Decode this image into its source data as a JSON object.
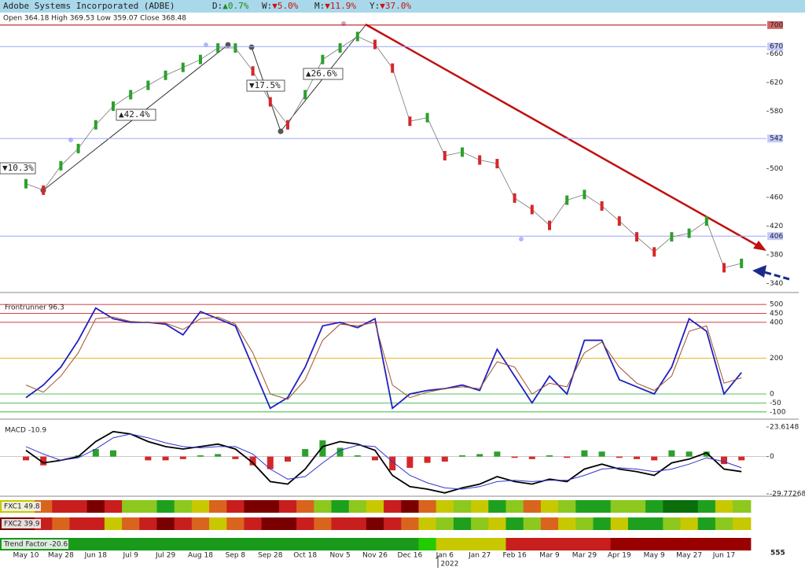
{
  "header": {
    "title": "Adobe Systems Incorporated (ADBE)",
    "changes": [
      {
        "label": "D:",
        "value": "▲0.7%",
        "color": "#1a8a1a"
      },
      {
        "label": "W:",
        "value": "▼5.0%",
        "color": "#cc1111"
      },
      {
        "label": "M:",
        "value": "▼11.9%",
        "color": "#cc1111"
      },
      {
        "label": "Y:",
        "value": "▼37.0%",
        "color": "#cc1111"
      }
    ],
    "ohlc": "Open 364.18 High 369.53 Low 359.07 Close 368.48"
  },
  "chart_data": [
    {
      "type": "line",
      "categories": [
        "May 10",
        null,
        "May 28",
        null,
        "Jun 18",
        null,
        "Jul 9",
        null,
        "Jul 29",
        null,
        "Aug 18",
        null,
        "Sep 8",
        null,
        "Sep 28",
        null,
        "Oct 18",
        null,
        "Nov 5",
        null,
        "Nov 26",
        null,
        "Dec 16",
        null,
        "Jan 6",
        null,
        "Jan 27",
        null,
        "Feb 16",
        null,
        "Mar 9",
        null,
        "Mar 29",
        null,
        "Apr 19",
        null,
        "May 9",
        null,
        "May 27",
        null,
        "Jun 17",
        null
      ],
      "year_label": "2022",
      "series": [
        {
          "color": "#777777",
          "values": [
            479,
            470,
            504,
            528,
            561,
            587,
            603,
            616,
            630,
            641,
            652,
            668,
            668,
            636,
            593,
            561,
            603,
            652,
            668,
            684,
            673,
            640,
            566,
            571,
            518,
            523,
            512,
            507,
            459,
            443,
            421,
            456,
            464,
            448,
            427,
            405,
            384,
            405,
            410,
            427,
            362,
            368
          ]
        }
      ],
      "up_color": "#2ca02c",
      "down_color": "#d62728",
      "ylim": [
        334,
        702
      ],
      "yticks": [
        340,
        380,
        420,
        460,
        500,
        580,
        620,
        660
      ],
      "levels": [
        {
          "value": 700,
          "color": "#b00000"
        },
        {
          "value": 670,
          "color": "#9aa6ff"
        },
        {
          "value": 542,
          "color": "#9aa6ff"
        },
        {
          "value": 406,
          "color": "#9aa6ff"
        }
      ],
      "annotations": [
        {
          "text": "▼10.3%",
          "color": "#cc1111"
        },
        {
          "text": "▲42.4%",
          "color": "#1a7a1a"
        },
        {
          "text": "▼17.5%",
          "color": "#cc1111"
        },
        {
          "text": "▲26.6%",
          "color": "#1a7a1a"
        }
      ]
    },
    {
      "type": "line",
      "title": "Frontrunner 96.3",
      "ylim": [
        -136,
        540
      ],
      "yticks": [
        500,
        450,
        400,
        200,
        0,
        -50,
        -100
      ],
      "tick_colors": [
        "#c00000",
        "#c00000",
        "#c00000",
        "#e0b000",
        "#22aa22",
        "#22aa22",
        "#22aa22"
      ],
      "series": [
        {
          "color": "#2020c0",
          "values": [
            -20,
            50,
            150,
            300,
            480,
            420,
            400,
            400,
            390,
            330,
            460,
            420,
            380,
            150,
            -80,
            -20,
            150,
            380,
            400,
            370,
            420,
            -80,
            0,
            20,
            30,
            50,
            20,
            250,
            100,
            -50,
            100,
            0,
            300,
            300,
            80,
            40,
            0,
            150,
            420,
            350,
            0,
            120
          ]
        },
        {
          "color": "#a0522d",
          "values": [
            50,
            10,
            100,
            230,
            420,
            430,
            405,
            400,
            395,
            360,
            420,
            430,
            390,
            230,
            0,
            -30,
            80,
            300,
            390,
            380,
            400,
            50,
            -20,
            10,
            30,
            40,
            30,
            180,
            150,
            0,
            60,
            40,
            230,
            290,
            150,
            60,
            20,
            100,
            350,
            380,
            60,
            90
          ]
        }
      ]
    },
    {
      "type": "line",
      "title": "MACD -10.9",
      "ylim": [
        -29.77268,
        23.6148
      ],
      "yticks": [
        23.6148,
        0,
        -29.77268
      ],
      "hist_up_color": "#2ca02c",
      "hist_down_color": "#d62728",
      "histogram": [
        -3,
        -7,
        0,
        1,
        6,
        5,
        0,
        -3,
        -3,
        -2,
        1,
        2,
        -2,
        -7,
        -10,
        -4,
        6,
        13,
        7,
        1,
        -3,
        -11,
        -9,
        -5,
        -4,
        1,
        2,
        4,
        -1,
        -2,
        1,
        -1,
        5,
        4,
        -1,
        -2,
        -3,
        5,
        4,
        4,
        -6,
        -3
      ],
      "series": [
        {
          "color": "#000000",
          "values": [
            5,
            -5,
            -3,
            0,
            12,
            20,
            18,
            12,
            8,
            6,
            8,
            10,
            6,
            -5,
            -20,
            -22,
            -10,
            8,
            12,
            10,
            5,
            -15,
            -24,
            -26,
            -29,
            -25,
            -22,
            -16,
            -20,
            -22,
            -18,
            -20,
            -10,
            -6,
            -10,
            -12,
            -15,
            -5,
            -2,
            3,
            -10,
            -12
          ]
        },
        {
          "color": "#3333cc",
          "values": [
            8,
            2,
            -3,
            -1,
            6,
            15,
            18,
            15,
            11,
            8,
            7,
            8,
            8,
            2,
            -10,
            -18,
            -16,
            -5,
            5,
            9,
            8,
            -4,
            -15,
            -21,
            -25,
            -26,
            -24,
            -20,
            -19,
            -20,
            -19,
            -19,
            -15,
            -10,
            -9,
            -10,
            -12,
            -10,
            -6,
            -1,
            -4,
            -9
          ]
        }
      ]
    },
    {
      "type": "heatmap",
      "scale_label": "555",
      "rows": [
        {
          "name": "FXC1 49.8",
          "colors": [
            "#c8c800",
            "#d9641e",
            "#c81e1e",
            "#c81e1e",
            "#7a0000",
            "#c81e1e",
            "#8cc81e",
            "#8cc81e",
            "#1ea01e",
            "#8cc81e",
            "#c8c800",
            "#d9641e",
            "#c81e1e",
            "#7a0000",
            "#7a0000",
            "#c81e1e",
            "#d9641e",
            "#8cc81e",
            "#1ea01e",
            "#8cc81e",
            "#c8c800",
            "#c81e1e",
            "#7a0000",
            "#d9641e",
            "#c8c800",
            "#8cc81e",
            "#c8c800",
            "#1ea01e",
            "#8cc81e",
            "#d9641e",
            "#c8c800",
            "#8cc81e",
            "#1ea01e",
            "#1ea01e",
            "#8cc81e",
            "#8cc81e",
            "#1ea01e",
            "#0a6e0a",
            "#0a6e0a",
            "#1ea01e",
            "#c8c800",
            "#8cc81e"
          ]
        },
        {
          "name": "FXC2 39.9",
          "colors": [
            "#7a0000",
            "#c81e1e",
            "#d9641e",
            "#c81e1e",
            "#c81e1e",
            "#c8c800",
            "#d9641e",
            "#c81e1e",
            "#7a0000",
            "#c81e1e",
            "#d9641e",
            "#c8c800",
            "#d9641e",
            "#c81e1e",
            "#7a0000",
            "#7a0000",
            "#c81e1e",
            "#d9641e",
            "#c81e1e",
            "#c81e1e",
            "#7a0000",
            "#c81e1e",
            "#d9641e",
            "#c8c800",
            "#8cc81e",
            "#1ea01e",
            "#8cc81e",
            "#c8c800",
            "#1ea01e",
            "#8cc81e",
            "#d9641e",
            "#c8c800",
            "#8cc81e",
            "#1ea01e",
            "#c8c800",
            "#1ea01e",
            "#1ea01e",
            "#8cc81e",
            "#c8c800",
            "#1ea01e",
            "#8cc81e",
            "#c8c800"
          ]
        },
        {
          "name": "Trend Factor -20.6",
          "colors": [
            "#1a9a1a",
            "#1a9a1a",
            "#1a9a1a",
            "#1a9a1a",
            "#1a9a1a",
            "#1a9a1a",
            "#1a9a1a",
            "#1a9a1a",
            "#1a9a1a",
            "#1a9a1a",
            "#1a9a1a",
            "#1a9a1a",
            "#1a9a1a",
            "#1a9a1a",
            "#1a9a1a",
            "#1a9a1a",
            "#1a9a1a",
            "#1a9a1a",
            "#1a9a1a",
            "#1a9a1a",
            "#1a9a1a",
            "#1a9a1a",
            "#1a9a1a",
            "#22cc00",
            "#c8c800",
            "#c8c800",
            "#c8c800",
            "#c8c800",
            "#c81e1e",
            "#c81e1e",
            "#c81e1e",
            "#c81e1e",
            "#c81e1e",
            "#c81e1e",
            "#990000",
            "#990000",
            "#990000",
            "#990000",
            "#990000",
            "#990000",
            "#990000",
            "#990000"
          ]
        }
      ]
    }
  ]
}
